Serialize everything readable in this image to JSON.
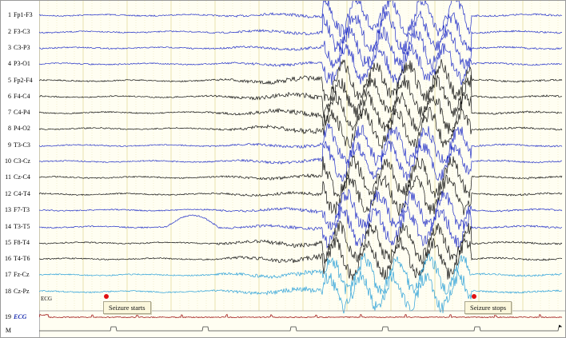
{
  "channels": [
    {
      "num": "1",
      "name": "Fp1-F3",
      "color": "#2330c8"
    },
    {
      "num": "2",
      "name": "F3-C3",
      "color": "#2330c8"
    },
    {
      "num": "3",
      "name": "C3-P3",
      "color": "#2330c8"
    },
    {
      "num": "4",
      "name": "P3-O1",
      "color": "#2330c8"
    },
    {
      "num": "5",
      "name": "Fp2-F4",
      "color": "#111111"
    },
    {
      "num": "6",
      "name": "F4-C4",
      "color": "#111111"
    },
    {
      "num": "7",
      "name": "C4-P4",
      "color": "#111111"
    },
    {
      "num": "8",
      "name": "P4-O2",
      "color": "#111111"
    },
    {
      "num": "9",
      "name": "T3-C3",
      "color": "#2330c8"
    },
    {
      "num": "10",
      "name": "C3-Cz",
      "color": "#2330c8"
    },
    {
      "num": "11",
      "name": "Cz-C4",
      "color": "#111111"
    },
    {
      "num": "12",
      "name": "C4-T4",
      "color": "#111111"
    },
    {
      "num": "13",
      "name": "F7-T3",
      "color": "#2330c8"
    },
    {
      "num": "14",
      "name": "T3-T5",
      "color": "#2330c8"
    },
    {
      "num": "15",
      "name": "F8-T4",
      "color": "#111111"
    },
    {
      "num": "16",
      "name": "T4-T6",
      "color": "#111111"
    },
    {
      "num": "17",
      "name": "Fz-Cz",
      "color": "#2aa0d8"
    },
    {
      "num": "18",
      "name": "Cz-Pz",
      "color": "#2aa0d8"
    },
    {
      "num": "19",
      "name": "ECG",
      "color": "#a01818"
    },
    {
      "num": "M",
      "name": "",
      "color": "#444444"
    }
  ],
  "ecg_tag": "ECG",
  "annotations": {
    "seizure_start": "Seizure starts",
    "seizure_stop": "Seizure stops"
  },
  "colors": {
    "background": "#fffef2",
    "grid": "#e7e0a8",
    "marker": "#e01010"
  },
  "icons": {
    "scroll": "scroll-right-icon"
  }
}
